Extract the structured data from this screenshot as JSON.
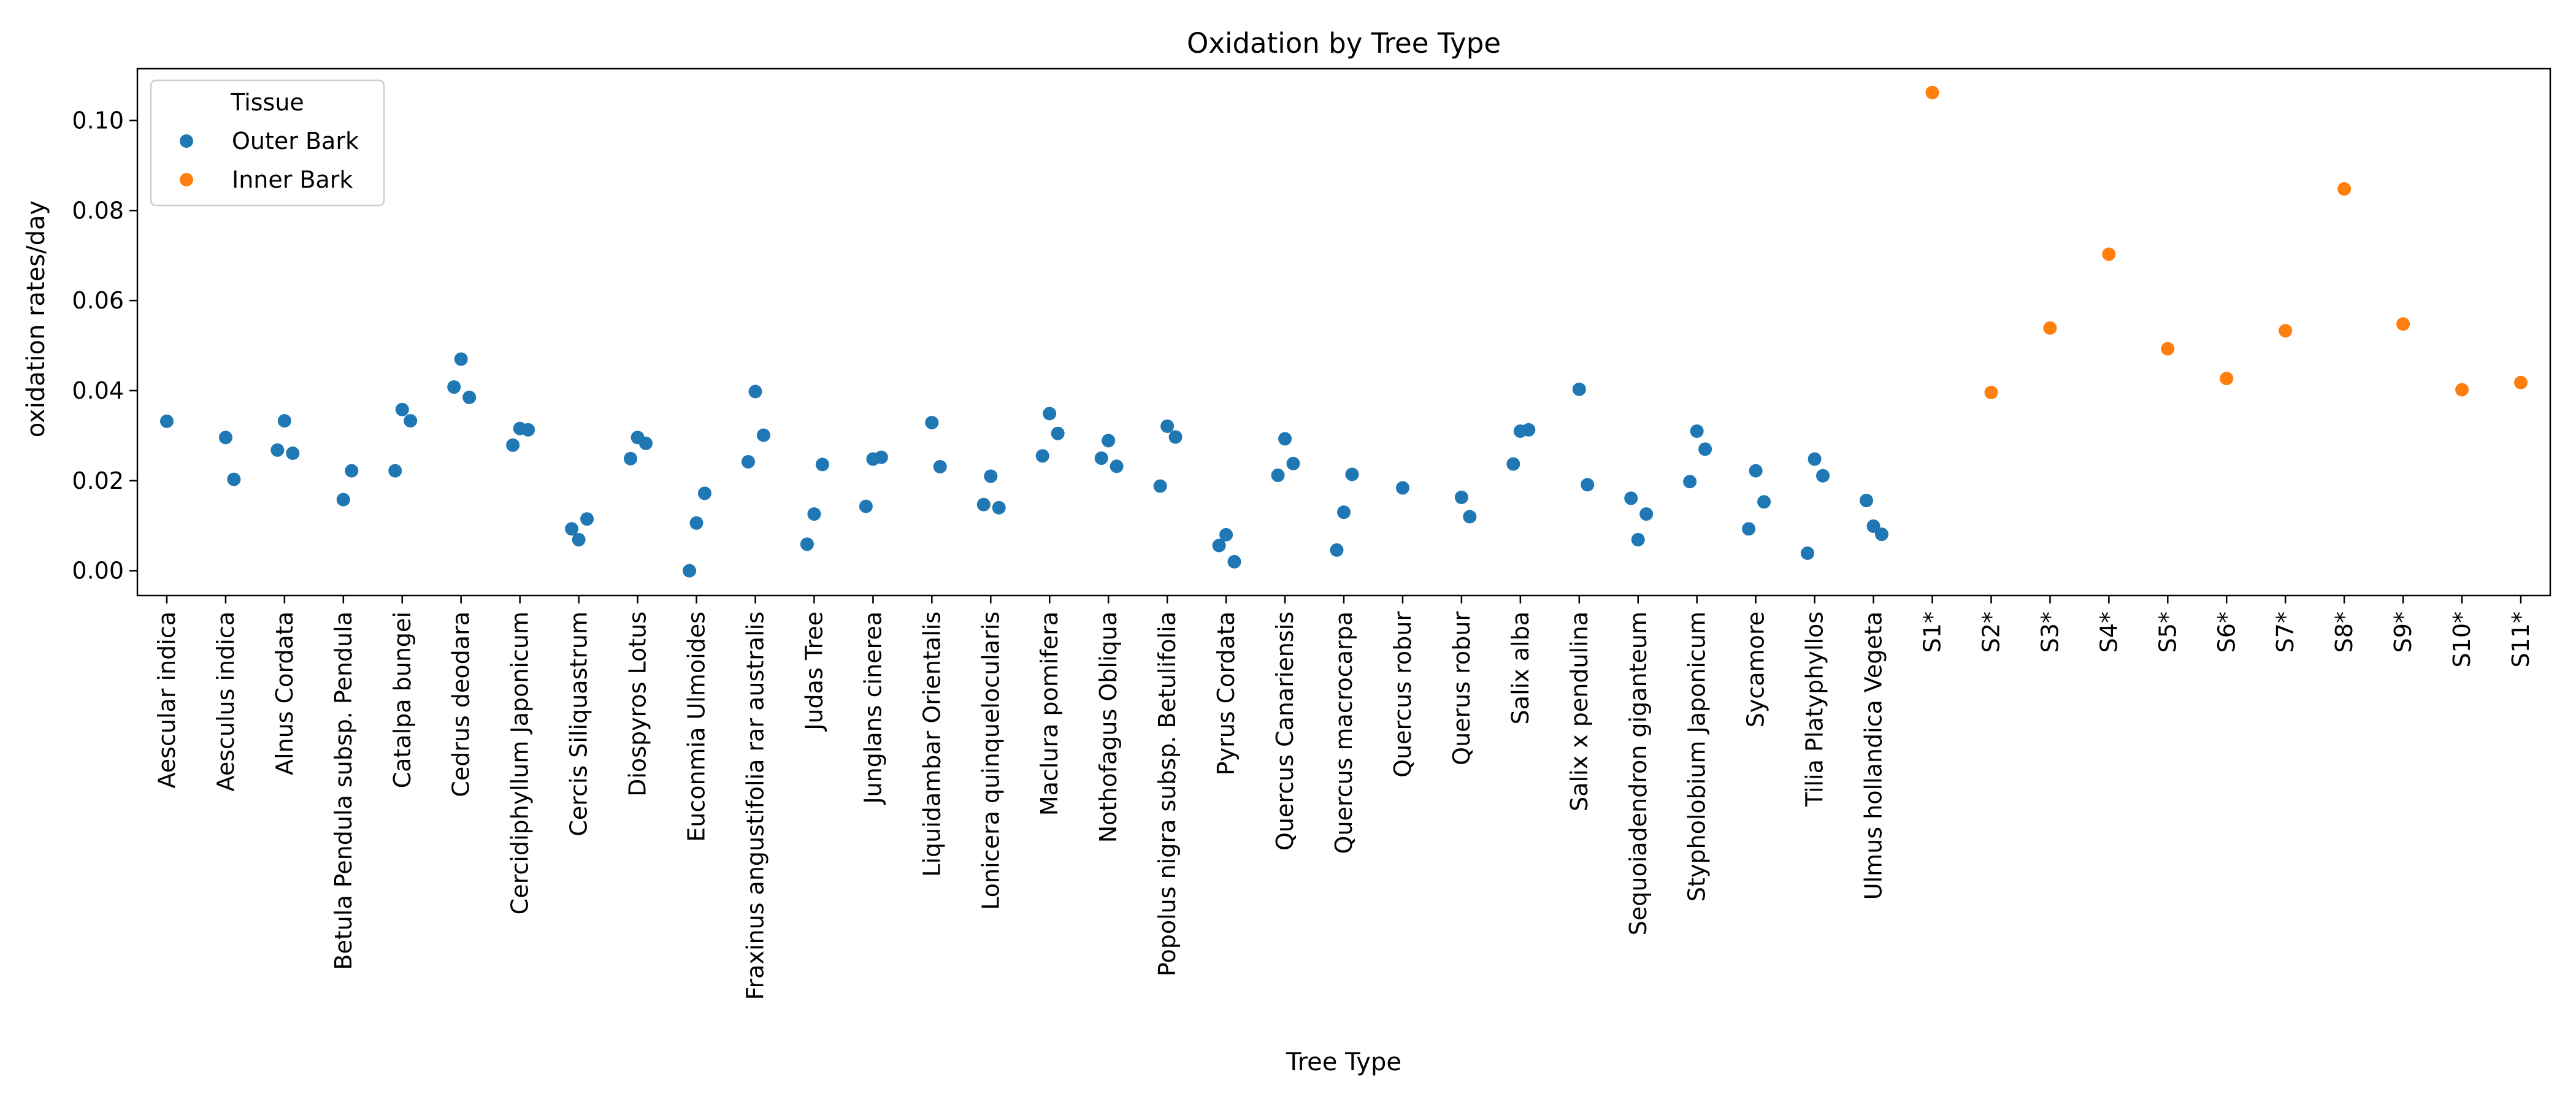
{
  "chart_data": {
    "type": "scatter",
    "title": "Oxidation by Tree Type",
    "xlabel": "Tree Type",
    "ylabel": "oxidation rates/day",
    "ylim": [
      -0.0055,
      0.1115
    ],
    "yticks": [
      0.0,
      0.02,
      0.04,
      0.06,
      0.08,
      0.1
    ],
    "ytick_labels": [
      "0.00",
      "0.02",
      "0.04",
      "0.06",
      "0.08",
      "0.10"
    ],
    "grid": false,
    "legend": {
      "title": "Tissue",
      "position": "upper-left"
    },
    "categories": [
      "Aescular indica",
      "Aesculus indica",
      "Alnus Cordata",
      "Betula Pendula subsp. Pendula",
      "Catalpa bungei",
      "Cedrus deodara",
      "Cercidiphyllum Japonicum",
      "Cercis Siliquastrum",
      "Diospyros Lotus",
      "Euconmia Ulmoides",
      "Fraxinus angustifolia rar australis",
      "Judas Tree",
      "Junglans cinerea",
      "Liquidambar Orientalis",
      "Lonicera quinquelocularis",
      "Maclura pomifera",
      "Nothofagus Obliqua",
      "Popolus nigra subsp. Betulifolia",
      "Pyrus Cordata",
      "Quercus Canariensis",
      "Quercus macrocarpa",
      "Quercus robur",
      "Querus robur",
      "Salix alba",
      "Salix x pendulina",
      "Sequoiadendron giganteum",
      "Stypholobium Japonicum",
      "Sycamore",
      "Tilia Platyphyllos",
      "Ulmus hollandica Vegeta",
      "S1*",
      "S2*",
      "S3*",
      "S4*",
      "S5*",
      "S6*",
      "S7*",
      "S8*",
      "S9*",
      "S10*",
      "S11*"
    ],
    "series": [
      {
        "name": "Outer Bark",
        "color": "#1f77b4",
        "points": [
          {
            "category": "Aescular indica",
            "values": [
              0.0332
            ]
          },
          {
            "category": "Aesculus indica",
            "values": [
              0.0296,
              0.0203
            ]
          },
          {
            "category": "Alnus Cordata",
            "values": [
              0.0333,
              0.0261,
              0.0268
            ]
          },
          {
            "category": "Betula Pendula subsp. Pendula",
            "values": [
              0.0158,
              0.0222
            ]
          },
          {
            "category": "Catalpa bungei",
            "values": [
              0.0358,
              0.0333,
              0.0222
            ]
          },
          {
            "category": "Cedrus deodara",
            "values": [
              0.047,
              0.0385,
              0.0408
            ]
          },
          {
            "category": "Cercidiphyllum Japonicum",
            "values": [
              0.0316,
              0.0313,
              0.0279
            ]
          },
          {
            "category": "Cercis Siliquastrum",
            "values": [
              0.0069,
              0.0115,
              0.0093
            ]
          },
          {
            "category": "Diospyros Lotus",
            "values": [
              0.0296,
              0.0283,
              0.0249
            ]
          },
          {
            "category": "Euconmia Ulmoides",
            "values": [
              0.0106,
              0.0172,
              0.0
            ]
          },
          {
            "category": "Fraxinus angustifolia rar australis",
            "values": [
              0.0398,
              0.0301,
              0.0242
            ]
          },
          {
            "category": "Judas Tree",
            "values": [
              0.0126,
              0.0236,
              0.0059
            ]
          },
          {
            "category": "Junglans cinerea",
            "values": [
              0.0248,
              0.0252,
              0.0143
            ]
          },
          {
            "category": "Liquidambar Orientalis",
            "values": [
              0.0329,
              0.0231
            ]
          },
          {
            "category": "Lonicera quinquelocularis",
            "values": [
              0.021,
              0.014,
              0.0147
            ]
          },
          {
            "category": "Maclura pomifera",
            "values": [
              0.0349,
              0.0305,
              0.0255
            ]
          },
          {
            "category": "Nothofagus Obliqua",
            "values": [
              0.0289,
              0.0232,
              0.025
            ]
          },
          {
            "category": "Popolus nigra subsp. Betulifolia",
            "values": [
              0.0321,
              0.0297,
              0.0188
            ]
          },
          {
            "category": "Pyrus Cordata",
            "values": [
              0.008,
              0.002,
              0.0056
            ]
          },
          {
            "category": "Quercus Canariensis",
            "values": [
              0.0293,
              0.0238,
              0.0212
            ]
          },
          {
            "category": "Quercus macrocarpa",
            "values": [
              0.013,
              0.0214,
              0.0046
            ]
          },
          {
            "category": "Quercus robur",
            "values": [
              0.0184
            ]
          },
          {
            "category": "Querus robur",
            "values": [
              0.0163,
              0.012
            ]
          },
          {
            "category": "Salix alba",
            "values": [
              0.031,
              0.0313,
              0.0237
            ]
          },
          {
            "category": "Salix x pendulina",
            "values": [
              0.0403,
              0.0191
            ]
          },
          {
            "category": "Sequoiadendron giganteum",
            "values": [
              0.0069,
              0.0126,
              0.0161
            ]
          },
          {
            "category": "Stypholobium Japonicum",
            "values": [
              0.031,
              0.027,
              0.0198
            ]
          },
          {
            "category": "Sycamore",
            "values": [
              0.0222,
              0.0153,
              0.0093
            ]
          },
          {
            "category": "Tilia Platyphyllos",
            "values": [
              0.0248,
              0.0211,
              0.0039
            ]
          },
          {
            "category": "Ulmus hollandica Vegeta",
            "values": [
              0.0099,
              0.0081,
              0.0156
            ]
          }
        ]
      },
      {
        "name": "Inner Bark",
        "color": "#ff7f0e",
        "points": [
          {
            "category": "S1*",
            "values": [
              0.1062
            ]
          },
          {
            "category": "S2*",
            "values": [
              0.0396
            ]
          },
          {
            "category": "S3*",
            "values": [
              0.0539
            ]
          },
          {
            "category": "S4*",
            "values": [
              0.0703
            ]
          },
          {
            "category": "S5*",
            "values": [
              0.0493
            ]
          },
          {
            "category": "S6*",
            "values": [
              0.0427
            ]
          },
          {
            "category": "S7*",
            "values": [
              0.0533
            ]
          },
          {
            "category": "S8*",
            "values": [
              0.0848
            ]
          },
          {
            "category": "S9*",
            "values": [
              0.0548
            ]
          },
          {
            "category": "S10*",
            "values": [
              0.0402
            ]
          },
          {
            "category": "S11*",
            "values": [
              0.0418
            ]
          }
        ]
      }
    ]
  }
}
